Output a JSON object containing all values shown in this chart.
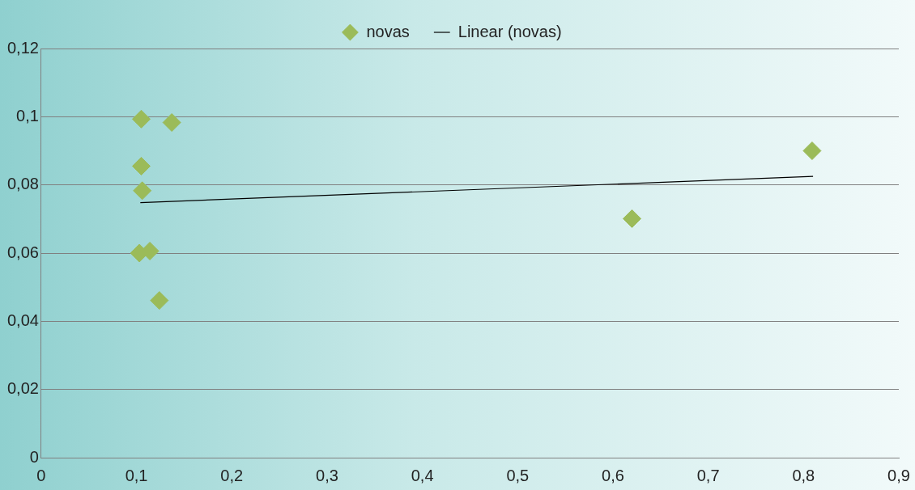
{
  "chart_data": {
    "type": "scatter",
    "legend": "top",
    "grid": "y",
    "xlim": [
      0,
      0.9
    ],
    "xticks": [
      0,
      {
        "value": 0.1,
        "label": "0,1"
      },
      {
        "value": 0.2,
        "label": "0,2"
      },
      {
        "value": 0.3,
        "label": "0,3"
      },
      {
        "value": 0.4,
        "label": "0,4"
      },
      {
        "value": 0.5,
        "label": "0,5"
      },
      {
        "value": 0.6,
        "label": "0,6"
      },
      {
        "value": 0.7,
        "label": "0,7"
      },
      {
        "value": 0.8,
        "label": "0,8"
      },
      {
        "value": 0.9,
        "label": "0,9"
      }
    ],
    "ylim": [
      0,
      0.12
    ],
    "yticks": [
      0,
      {
        "value": 0.02,
        "label": "0,02"
      },
      {
        "value": 0.04,
        "label": "0,04"
      },
      {
        "value": 0.06,
        "label": "0,06"
      },
      {
        "value": 0.08,
        "label": "0,08"
      },
      {
        "value": 0.1,
        "label": "0,1"
      },
      {
        "value": 0.12,
        "label": "0,12"
      }
    ],
    "series": [
      {
        "name": "novas",
        "marker": "diamond",
        "color": "#9bbb59",
        "x": [
          0.105,
          0.137,
          0.105,
          0.106,
          0.103,
          0.114,
          0.124,
          0.62,
          0.809
        ],
        "values": [
          0.0993,
          0.0983,
          0.0855,
          0.0783,
          0.06,
          0.0606,
          0.0461,
          0.0701,
          0.09
        ]
      },
      {
        "name": "Linear (novas)",
        "type": "line",
        "marker": "none",
        "color": "#000000",
        "x": [
          0.104,
          0.81
        ],
        "values": [
          0.0748,
          0.0825
        ]
      }
    ]
  }
}
